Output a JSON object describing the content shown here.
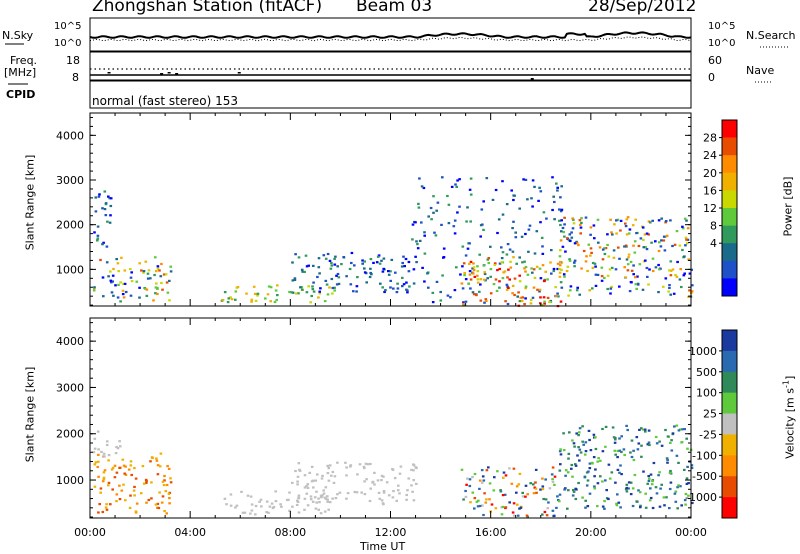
{
  "header": {
    "station": "Zhongshan Station (fitACF)",
    "beam": "Beam 03",
    "date": "28/Sep/2012"
  },
  "strips": {
    "nsky_label": "N.Sky",
    "nsky_ticks": [
      "10^5",
      "10^0"
    ],
    "nsearch_label": "N.Search",
    "nsearch_ticks": [
      "10^5",
      "10^0"
    ],
    "freq_label": "Freq.",
    "freq_unit": "[MHz]",
    "freq_ticks": [
      "18",
      "8"
    ],
    "nave_label": "Nave",
    "nave_ticks": [
      "60",
      "0"
    ],
    "cpid_label": "CPID",
    "cpid_text": "normal (fast stereo) 153"
  },
  "chart_data": [
    {
      "type": "heatmap",
      "name": "power",
      "ylabel": "Slant Range [km]",
      "xlabel": "",
      "ylim": [
        180,
        4500
      ],
      "xlim": [
        0,
        24
      ],
      "yticks": [
        1000,
        2000,
        3000,
        4000
      ],
      "colorbar": {
        "label": "Power [dB]",
        "ticks": [
          "28",
          "24",
          "20",
          "16",
          "12",
          "8",
          "4"
        ],
        "colors": [
          "#ff0000",
          "#e84c00",
          "#ff8c00",
          "#f0b000",
          "#c8d800",
          "#5fc93c",
          "#2f9a5c",
          "#1a6a8a",
          "#1e50c8",
          "#0000ff"
        ]
      },
      "regions": [
        {
          "t0": 0.1,
          "t1": 3.2,
          "r0": 300,
          "r1": 1300,
          "level": "mixed-green-yellow"
        },
        {
          "t0": 0.1,
          "t1": 0.8,
          "r0": 1500,
          "r1": 2900,
          "level": "low"
        },
        {
          "t0": 5.2,
          "t1": 9.8,
          "r0": 280,
          "r1": 700,
          "level": "moderate"
        },
        {
          "t0": 8.0,
          "t1": 13.0,
          "r0": 500,
          "r1": 1400,
          "level": "low"
        },
        {
          "t0": 12.8,
          "t1": 19.0,
          "r0": 200,
          "r1": 3100,
          "level": "low-scattered"
        },
        {
          "t0": 14.8,
          "t1": 18.8,
          "r0": 200,
          "r1": 1300,
          "level": "high"
        },
        {
          "t0": 18.7,
          "t1": 24.0,
          "r0": 400,
          "r1": 2200,
          "level": "mixed-high"
        }
      ]
    },
    {
      "type": "heatmap",
      "name": "velocity",
      "ylabel": "Slant Range [km]",
      "xlabel": "Time UT",
      "ylim": [
        180,
        4500
      ],
      "xlim": [
        0,
        24
      ],
      "yticks": [
        1000,
        2000,
        3000,
        4000
      ],
      "xticks": [
        "00:00",
        "04:00",
        "08:00",
        "12:00",
        "16:00",
        "20:00",
        "00:00"
      ],
      "colorbar": {
        "label": "Velocity [m s",
        "label_sup": "-1",
        "label_end": "]",
        "ticks": [
          "1000",
          "500",
          "100",
          "25",
          "-25",
          "-100",
          "-500",
          "-1000"
        ],
        "colors": [
          "#1b3aa0",
          "#2a6ab0",
          "#2f8a5a",
          "#5fc93c",
          "#c0c0c0",
          "#f0b000",
          "#ff8c00",
          "#e84c00",
          "#ff0000"
        ]
      },
      "regions": [
        {
          "t0": 0.1,
          "t1": 3.2,
          "r0": 300,
          "r1": 1600,
          "level": "negative"
        },
        {
          "t0": 0.1,
          "t1": 1.2,
          "r0": 1500,
          "r1": 2100,
          "level": "near-zero"
        },
        {
          "t0": 5.2,
          "t1": 9.8,
          "r0": 280,
          "r1": 800,
          "level": "near-zero"
        },
        {
          "t0": 8.0,
          "t1": 13.0,
          "r0": 500,
          "r1": 1400,
          "level": "near-zero"
        },
        {
          "t0": 14.8,
          "t1": 18.8,
          "r0": 200,
          "r1": 1300,
          "level": "mixed"
        },
        {
          "t0": 18.7,
          "t1": 24.0,
          "r0": 400,
          "r1": 2200,
          "level": "positive"
        }
      ]
    }
  ],
  "colors": {
    "background": "#ffffff",
    "axes": "#000000"
  }
}
